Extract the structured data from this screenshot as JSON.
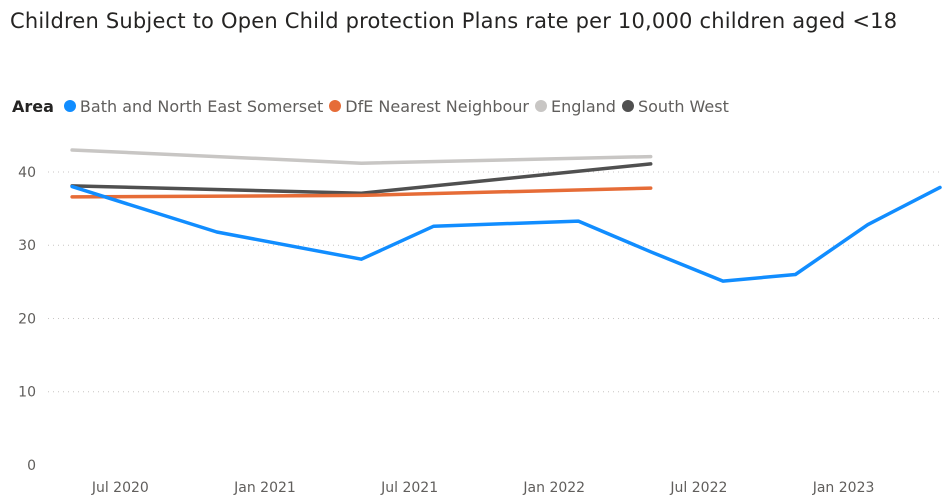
{
  "chart_data": {
    "type": "line",
    "title": "Children Subject to Open Child protection Plans rate per 10,000 children aged <18",
    "legend_title": "Area",
    "legend_position": "top-left",
    "x": [
      "2020-05",
      "2020-11",
      "2021-05",
      "2021-08",
      "2022-02",
      "2022-05",
      "2022-08",
      "2022-11",
      "2023-02",
      "2023-05"
    ],
    "x_ticks": [
      {
        "date": "2020-07",
        "label": "Jul 2020"
      },
      {
        "date": "2021-01",
        "label": "Jan 2021"
      },
      {
        "date": "2021-07",
        "label": "Jul 2021"
      },
      {
        "date": "2022-01",
        "label": "Jan 2022"
      },
      {
        "date": "2022-07",
        "label": "Jul 2022"
      },
      {
        "date": "2023-01",
        "label": "Jan 2023"
      }
    ],
    "x_range": [
      "2020-04",
      "2023-05"
    ],
    "y_ticks": [
      0,
      10,
      20,
      30,
      40
    ],
    "ylim": [
      0,
      43
    ],
    "grid": true,
    "series": [
      {
        "name": "Bath and North East Somerset",
        "color": "#118DFF",
        "points": [
          [
            "2020-05",
            38.0
          ],
          [
            "2020-11",
            31.8
          ],
          [
            "2021-05",
            28.1
          ],
          [
            "2021-08",
            32.6
          ],
          [
            "2022-02",
            33.3
          ],
          [
            "2022-05",
            29.1
          ],
          [
            "2022-08",
            25.1
          ],
          [
            "2022-11",
            26.0
          ],
          [
            "2023-02",
            32.8
          ],
          [
            "2023-05",
            37.9
          ]
        ]
      },
      {
        "name": "DfE Nearest Neighbour",
        "color": "#E66C37",
        "points": [
          [
            "2020-05",
            36.6
          ],
          [
            "2021-05",
            36.8
          ],
          [
            "2022-05",
            37.8
          ]
        ]
      },
      {
        "name": "England",
        "color": "#C8C6C4",
        "points": [
          [
            "2020-05",
            43.0
          ],
          [
            "2021-05",
            41.2
          ],
          [
            "2022-05",
            42.1
          ]
        ]
      },
      {
        "name": "South West",
        "color": "#505050",
        "points": [
          [
            "2020-05",
            38.1
          ],
          [
            "2021-05",
            37.1
          ],
          [
            "2022-05",
            41.1
          ]
        ]
      }
    ]
  }
}
